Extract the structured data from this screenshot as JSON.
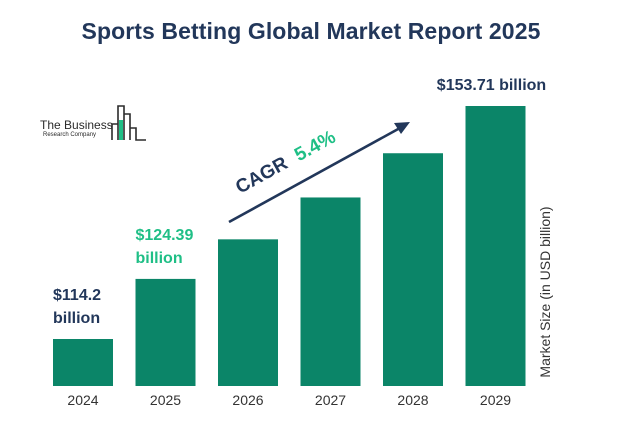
{
  "title": "Sports Betting Global Market Report 2025",
  "logo": {
    "name": "The Business",
    "subtitle": "Research Company"
  },
  "colors": {
    "bar": "#0b8568",
    "title": "#22375a",
    "callout_dark": "#22375a",
    "callout_green": "#1fbf86",
    "axis_text": "#333333"
  },
  "chart_data": {
    "type": "bar",
    "categories": [
      "2024",
      "2025",
      "2026",
      "2027",
      "2028",
      "2029"
    ],
    "values": [
      114.2,
      124.39,
      131.1,
      138.2,
      145.7,
      153.71
    ],
    "ylabel": "Market Size (in USD billion)",
    "ylim": [
      0,
      160
    ],
    "grid": false,
    "annotations": [
      {
        "category": "2024",
        "lines": [
          "$114.2",
          "billion"
        ],
        "color": "dark"
      },
      {
        "category": "2025",
        "lines": [
          "$124.39",
          "billion"
        ],
        "color": "green"
      },
      {
        "category": "2029",
        "lines": [
          "$153.71 billion"
        ],
        "color": "dark"
      }
    ],
    "cagr": {
      "label": "CAGR",
      "value": "5.4%"
    }
  }
}
